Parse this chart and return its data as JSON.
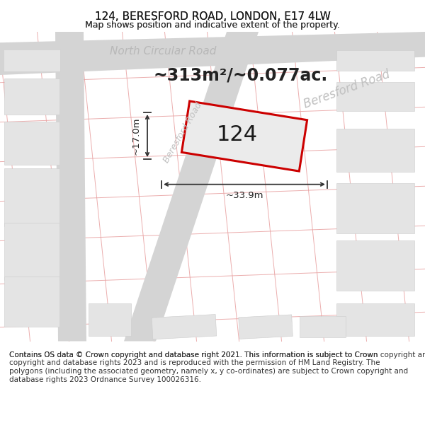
{
  "title": "124, BERESFORD ROAD, LONDON, E17 4LW",
  "subtitle": "Map shows position and indicative extent of the property.",
  "area_text": "~313m²/~0.077ac.",
  "property_number": "124",
  "dim_width": "~33.9m",
  "dim_height": "~17.0m",
  "footer": "Contains OS data © Crown copyright and database right 2021. This information is subject to Crown copyright and database rights 2023 and is reproduced with the permission of HM Land Registry. The polygons (including the associated geometry, namely x, y co-ordinates) are subject to Crown copyright and database rights 2023 Ordnance Survey 100026316.",
  "background_color": "#ffffff",
  "grid_line_color": "#e8a0a0",
  "grid_line_alpha": 0.85,
  "property_outline_color": "#cc0000",
  "property_fill_color": "#e8e8e8",
  "road_label_color": "#b0b0b0",
  "block_color": "#e4e4e4",
  "road_color": "#d4d4d4",
  "title_fontsize": 11,
  "subtitle_fontsize": 9,
  "area_fontsize": 17,
  "property_num_fontsize": 22,
  "footer_fontsize": 7.5
}
